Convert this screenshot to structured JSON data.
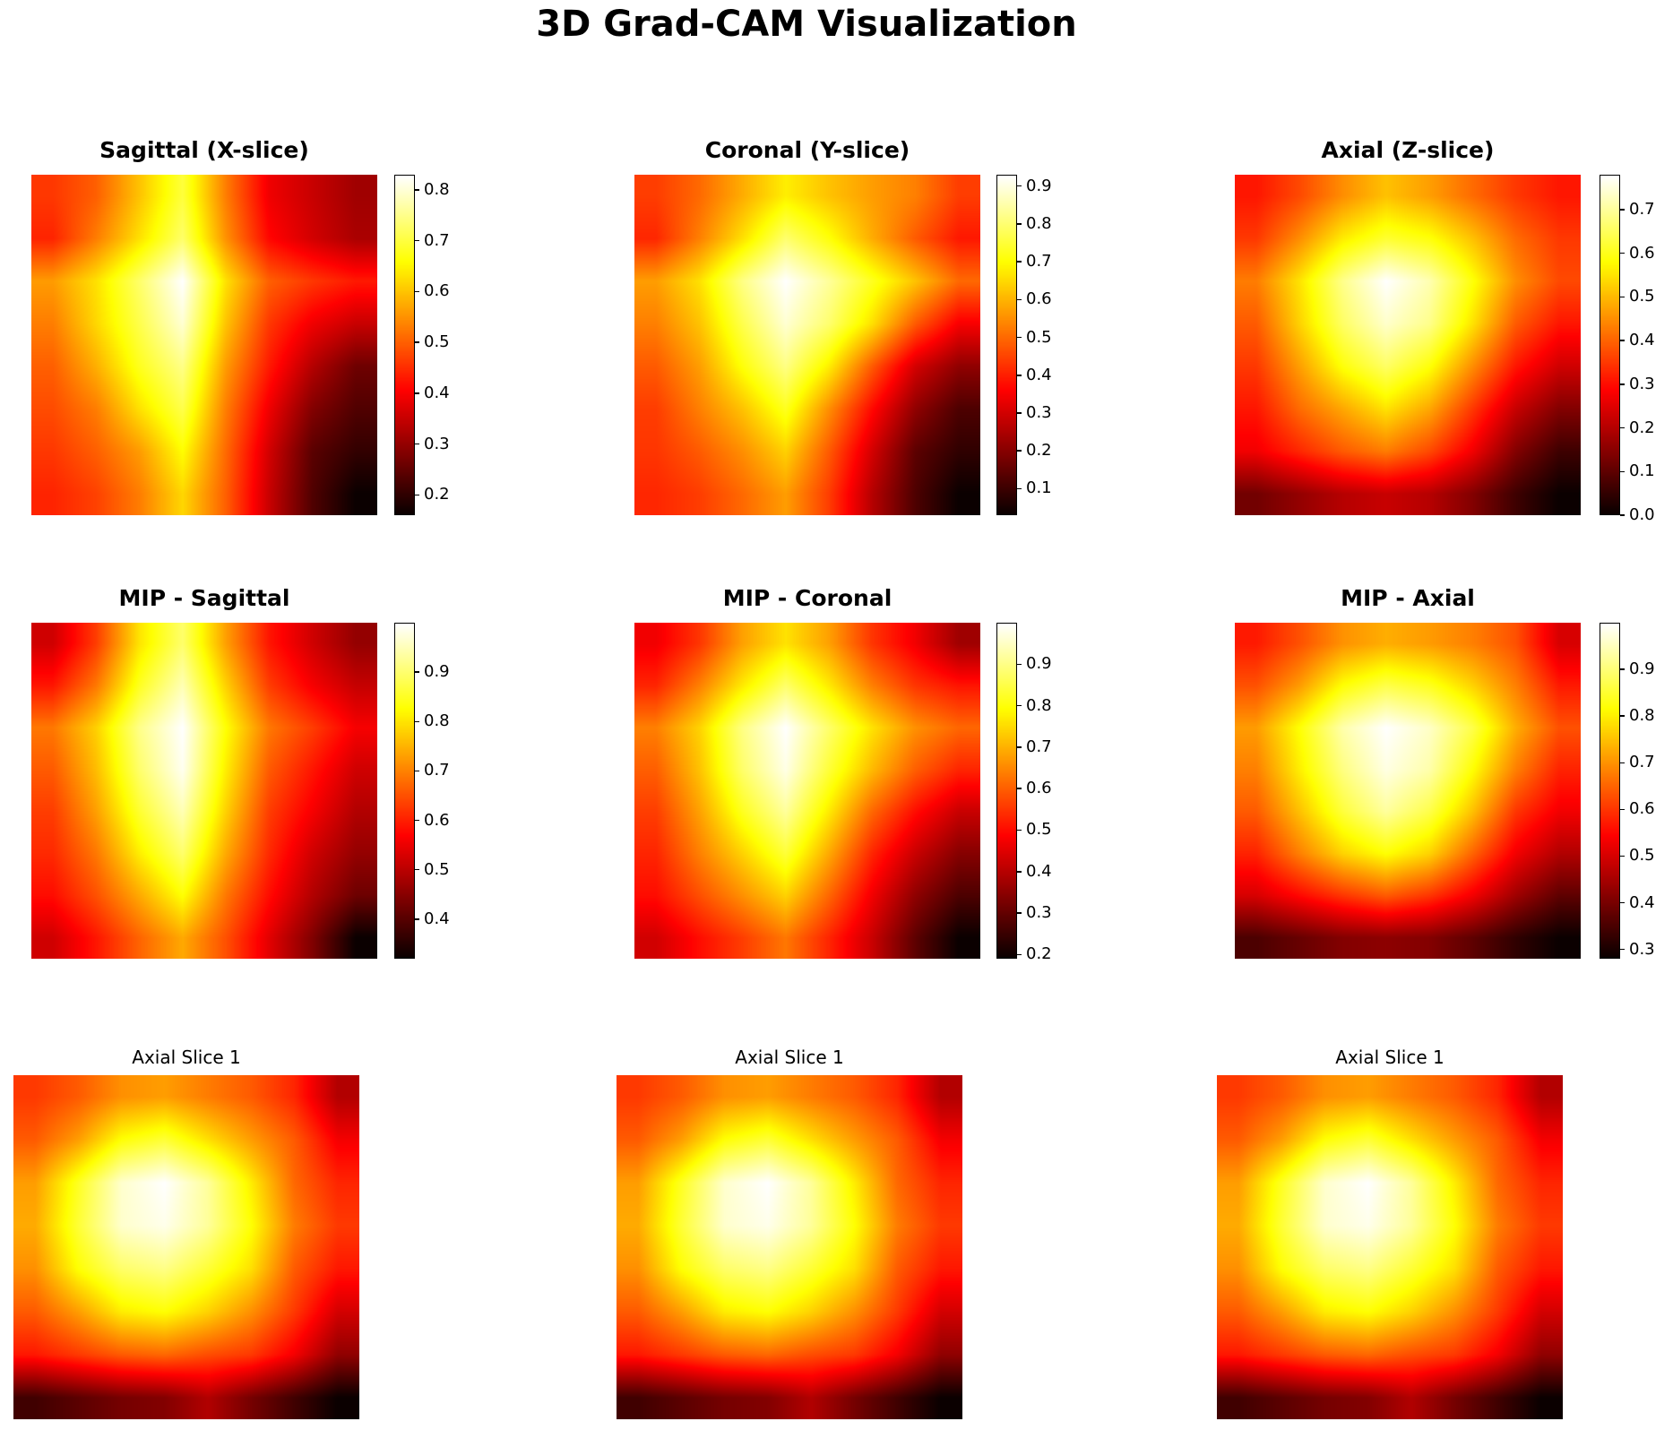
{
  "figure_title": "3D Grad-CAM Visualization",
  "colormap": "hot",
  "background_color": "#ffffff",
  "text_color": "#000000",
  "chart_data": [
    {
      "type": "heatmap",
      "title": "Sagittal (X-slice)",
      "colormap": "hot",
      "colorbar": true,
      "vmin": 0.16,
      "vmax": 0.83,
      "colorbar_ticks": [
        "0.8",
        "0.7",
        "0.6",
        "0.5",
        "0.4",
        "0.3",
        "0.2"
      ],
      "grid": [
        [
          0.46,
          0.5,
          0.6,
          0.7,
          0.53,
          0.39,
          0.35,
          0.31
        ],
        [
          0.44,
          0.53,
          0.63,
          0.73,
          0.55,
          0.41,
          0.36,
          0.32
        ],
        [
          0.56,
          0.63,
          0.73,
          0.83,
          0.63,
          0.5,
          0.46,
          0.43
        ],
        [
          0.53,
          0.62,
          0.71,
          0.8,
          0.6,
          0.46,
          0.39,
          0.35
        ],
        [
          0.5,
          0.58,
          0.68,
          0.75,
          0.56,
          0.43,
          0.33,
          0.26
        ],
        [
          0.48,
          0.53,
          0.63,
          0.71,
          0.53,
          0.39,
          0.28,
          0.23
        ],
        [
          0.46,
          0.5,
          0.56,
          0.66,
          0.51,
          0.36,
          0.24,
          0.2
        ],
        [
          0.44,
          0.47,
          0.53,
          0.62,
          0.5,
          0.35,
          0.23,
          0.16
        ]
      ]
    },
    {
      "type": "heatmap",
      "title": "Coronal (Y-slice)",
      "colormap": "hot",
      "colorbar": true,
      "vmin": 0.03,
      "vmax": 0.93,
      "colorbar_ticks": [
        "0.9",
        "0.8",
        "0.7",
        "0.6",
        "0.5",
        "0.4",
        "0.3",
        "0.2",
        "0.1"
      ],
      "grid": [
        [
          0.44,
          0.5,
          0.59,
          0.68,
          0.62,
          0.57,
          0.53,
          0.44
        ],
        [
          0.41,
          0.53,
          0.66,
          0.8,
          0.71,
          0.59,
          0.48,
          0.39
        ],
        [
          0.57,
          0.66,
          0.82,
          0.93,
          0.84,
          0.73,
          0.62,
          0.5
        ],
        [
          0.53,
          0.62,
          0.77,
          0.89,
          0.8,
          0.66,
          0.48,
          0.35
        ],
        [
          0.48,
          0.57,
          0.71,
          0.82,
          0.68,
          0.48,
          0.3,
          0.21
        ],
        [
          0.44,
          0.53,
          0.62,
          0.73,
          0.55,
          0.37,
          0.21,
          0.12
        ],
        [
          0.43,
          0.48,
          0.55,
          0.64,
          0.48,
          0.3,
          0.14,
          0.08
        ],
        [
          0.41,
          0.44,
          0.5,
          0.57,
          0.44,
          0.26,
          0.12,
          0.03
        ]
      ]
    },
    {
      "type": "heatmap",
      "title": "Axial (Z-slice)",
      "colormap": "hot",
      "colorbar": true,
      "vmin": 0.0,
      "vmax": 0.78,
      "colorbar_ticks": [
        "0.7",
        "0.6",
        "0.5",
        "0.4",
        "0.3",
        "0.2",
        "0.1",
        "0.0"
      ],
      "grid": [
        [
          0.31,
          0.37,
          0.45,
          0.51,
          0.47,
          0.41,
          0.35,
          0.31
        ],
        [
          0.35,
          0.45,
          0.56,
          0.62,
          0.59,
          0.51,
          0.41,
          0.35
        ],
        [
          0.43,
          0.55,
          0.69,
          0.78,
          0.72,
          0.59,
          0.45,
          0.37
        ],
        [
          0.39,
          0.53,
          0.66,
          0.74,
          0.69,
          0.55,
          0.39,
          0.31
        ],
        [
          0.35,
          0.47,
          0.59,
          0.66,
          0.59,
          0.45,
          0.31,
          0.23
        ],
        [
          0.31,
          0.41,
          0.48,
          0.55,
          0.48,
          0.35,
          0.22,
          0.14
        ],
        [
          0.27,
          0.33,
          0.39,
          0.43,
          0.37,
          0.27,
          0.14,
          0.06
        ],
        [
          0.12,
          0.16,
          0.2,
          0.22,
          0.2,
          0.14,
          0.06,
          0.0
        ]
      ]
    },
    {
      "type": "heatmap",
      "title": "MIP - Sagittal",
      "colormap": "hot",
      "colorbar": true,
      "vmin": 0.32,
      "vmax": 1.0,
      "colorbar_ticks": [
        "0.9",
        "0.8",
        "0.7",
        "0.6",
        "0.5",
        "0.4"
      ],
      "grid": [
        [
          0.52,
          0.63,
          0.8,
          0.9,
          0.73,
          0.59,
          0.52,
          0.46
        ],
        [
          0.59,
          0.69,
          0.85,
          0.95,
          0.78,
          0.63,
          0.56,
          0.51
        ],
        [
          0.69,
          0.78,
          0.92,
          1.0,
          0.83,
          0.69,
          0.63,
          0.56
        ],
        [
          0.66,
          0.76,
          0.9,
          0.99,
          0.81,
          0.66,
          0.59,
          0.52
        ],
        [
          0.63,
          0.73,
          0.86,
          0.95,
          0.78,
          0.63,
          0.56,
          0.49
        ],
        [
          0.61,
          0.69,
          0.81,
          0.9,
          0.74,
          0.61,
          0.52,
          0.46
        ],
        [
          0.58,
          0.65,
          0.74,
          0.83,
          0.69,
          0.58,
          0.49,
          0.42
        ],
        [
          0.52,
          0.59,
          0.67,
          0.74,
          0.65,
          0.54,
          0.44,
          0.32
        ]
      ]
    },
    {
      "type": "heatmap",
      "title": "MIP - Coronal",
      "colormap": "hot",
      "colorbar": true,
      "vmin": 0.19,
      "vmax": 1.0,
      "colorbar_ticks": [
        "0.9",
        "0.8",
        "0.7",
        "0.6",
        "0.5",
        "0.4",
        "0.3",
        "0.2"
      ],
      "grid": [
        [
          0.47,
          0.55,
          0.68,
          0.76,
          0.68,
          0.55,
          0.47,
          0.37
        ],
        [
          0.53,
          0.64,
          0.77,
          0.88,
          0.77,
          0.64,
          0.55,
          0.51
        ],
        [
          0.64,
          0.74,
          0.9,
          1.0,
          0.88,
          0.76,
          0.66,
          0.61
        ],
        [
          0.6,
          0.72,
          0.88,
          0.98,
          0.84,
          0.71,
          0.6,
          0.53
        ],
        [
          0.56,
          0.68,
          0.82,
          0.92,
          0.77,
          0.61,
          0.5,
          0.42
        ],
        [
          0.53,
          0.64,
          0.74,
          0.84,
          0.69,
          0.53,
          0.42,
          0.34
        ],
        [
          0.5,
          0.58,
          0.66,
          0.74,
          0.61,
          0.47,
          0.35,
          0.27
        ],
        [
          0.43,
          0.5,
          0.56,
          0.63,
          0.53,
          0.42,
          0.29,
          0.19
        ]
      ]
    },
    {
      "type": "heatmap",
      "title": "MIP - Axial",
      "colormap": "hot",
      "colorbar": true,
      "vmin": 0.28,
      "vmax": 1.0,
      "colorbar_ticks": [
        "0.9",
        "0.8",
        "0.7",
        "0.6",
        "0.5",
        "0.4",
        "0.3"
      ],
      "grid": [
        [
          0.57,
          0.63,
          0.7,
          0.73,
          0.71,
          0.68,
          0.63,
          0.5
        ],
        [
          0.63,
          0.71,
          0.82,
          0.87,
          0.84,
          0.77,
          0.68,
          0.57
        ],
        [
          0.71,
          0.82,
          0.94,
          1.0,
          0.96,
          0.87,
          0.73,
          0.63
        ],
        [
          0.68,
          0.8,
          0.91,
          0.98,
          0.94,
          0.82,
          0.68,
          0.58
        ],
        [
          0.64,
          0.75,
          0.86,
          0.93,
          0.87,
          0.75,
          0.6,
          0.53
        ],
        [
          0.58,
          0.68,
          0.77,
          0.82,
          0.77,
          0.65,
          0.53,
          0.46
        ],
        [
          0.5,
          0.55,
          0.6,
          0.64,
          0.6,
          0.53,
          0.44,
          0.37
        ],
        [
          0.35,
          0.38,
          0.41,
          0.42,
          0.41,
          0.37,
          0.32,
          0.28
        ]
      ]
    },
    {
      "type": "heatmap",
      "title": "Axial Slice 1",
      "colormap": "hot",
      "colorbar": false,
      "vmin": 0.0,
      "vmax": 1.0,
      "grid": [
        [
          0.45,
          0.5,
          0.58,
          0.6,
          0.55,
          0.5,
          0.42,
          0.25
        ],
        [
          0.5,
          0.6,
          0.75,
          0.8,
          0.7,
          0.6,
          0.5,
          0.35
        ],
        [
          0.6,
          0.78,
          0.95,
          1.0,
          0.9,
          0.72,
          0.52,
          0.42
        ],
        [
          0.62,
          0.8,
          0.95,
          0.98,
          0.9,
          0.75,
          0.55,
          0.45
        ],
        [
          0.58,
          0.75,
          0.85,
          0.88,
          0.8,
          0.7,
          0.5,
          0.4
        ],
        [
          0.5,
          0.6,
          0.72,
          0.75,
          0.68,
          0.58,
          0.45,
          0.3
        ],
        [
          0.4,
          0.45,
          0.5,
          0.52,
          0.48,
          0.45,
          0.35,
          0.2
        ],
        [
          0.08,
          0.12,
          0.16,
          0.18,
          0.25,
          0.16,
          0.08,
          0.0
        ]
      ]
    },
    {
      "type": "heatmap",
      "title": "Axial Slice 1",
      "colormap": "hot",
      "colorbar": false,
      "vmin": 0.0,
      "vmax": 1.0,
      "grid": [
        [
          0.45,
          0.5,
          0.58,
          0.6,
          0.55,
          0.5,
          0.42,
          0.25
        ],
        [
          0.5,
          0.6,
          0.75,
          0.8,
          0.7,
          0.6,
          0.5,
          0.35
        ],
        [
          0.6,
          0.78,
          0.95,
          1.0,
          0.9,
          0.72,
          0.52,
          0.42
        ],
        [
          0.62,
          0.8,
          0.95,
          0.98,
          0.9,
          0.75,
          0.55,
          0.45
        ],
        [
          0.58,
          0.75,
          0.85,
          0.88,
          0.8,
          0.7,
          0.5,
          0.4
        ],
        [
          0.5,
          0.6,
          0.72,
          0.75,
          0.68,
          0.58,
          0.45,
          0.3
        ],
        [
          0.4,
          0.45,
          0.5,
          0.52,
          0.48,
          0.45,
          0.35,
          0.2
        ],
        [
          0.08,
          0.12,
          0.16,
          0.18,
          0.25,
          0.16,
          0.08,
          0.0
        ]
      ]
    },
    {
      "type": "heatmap",
      "title": "Axial Slice 1",
      "colormap": "hot",
      "colorbar": false,
      "vmin": 0.0,
      "vmax": 1.0,
      "grid": [
        [
          0.45,
          0.5,
          0.58,
          0.6,
          0.55,
          0.5,
          0.42,
          0.25
        ],
        [
          0.5,
          0.6,
          0.75,
          0.8,
          0.7,
          0.6,
          0.5,
          0.35
        ],
        [
          0.6,
          0.78,
          0.95,
          1.0,
          0.9,
          0.72,
          0.52,
          0.42
        ],
        [
          0.62,
          0.8,
          0.95,
          0.98,
          0.9,
          0.75,
          0.55,
          0.45
        ],
        [
          0.58,
          0.75,
          0.85,
          0.88,
          0.8,
          0.7,
          0.5,
          0.4
        ],
        [
          0.5,
          0.6,
          0.72,
          0.75,
          0.68,
          0.58,
          0.45,
          0.3
        ],
        [
          0.4,
          0.45,
          0.5,
          0.52,
          0.48,
          0.45,
          0.35,
          0.2
        ],
        [
          0.08,
          0.12,
          0.16,
          0.18,
          0.25,
          0.16,
          0.08,
          0.0
        ]
      ]
    }
  ]
}
